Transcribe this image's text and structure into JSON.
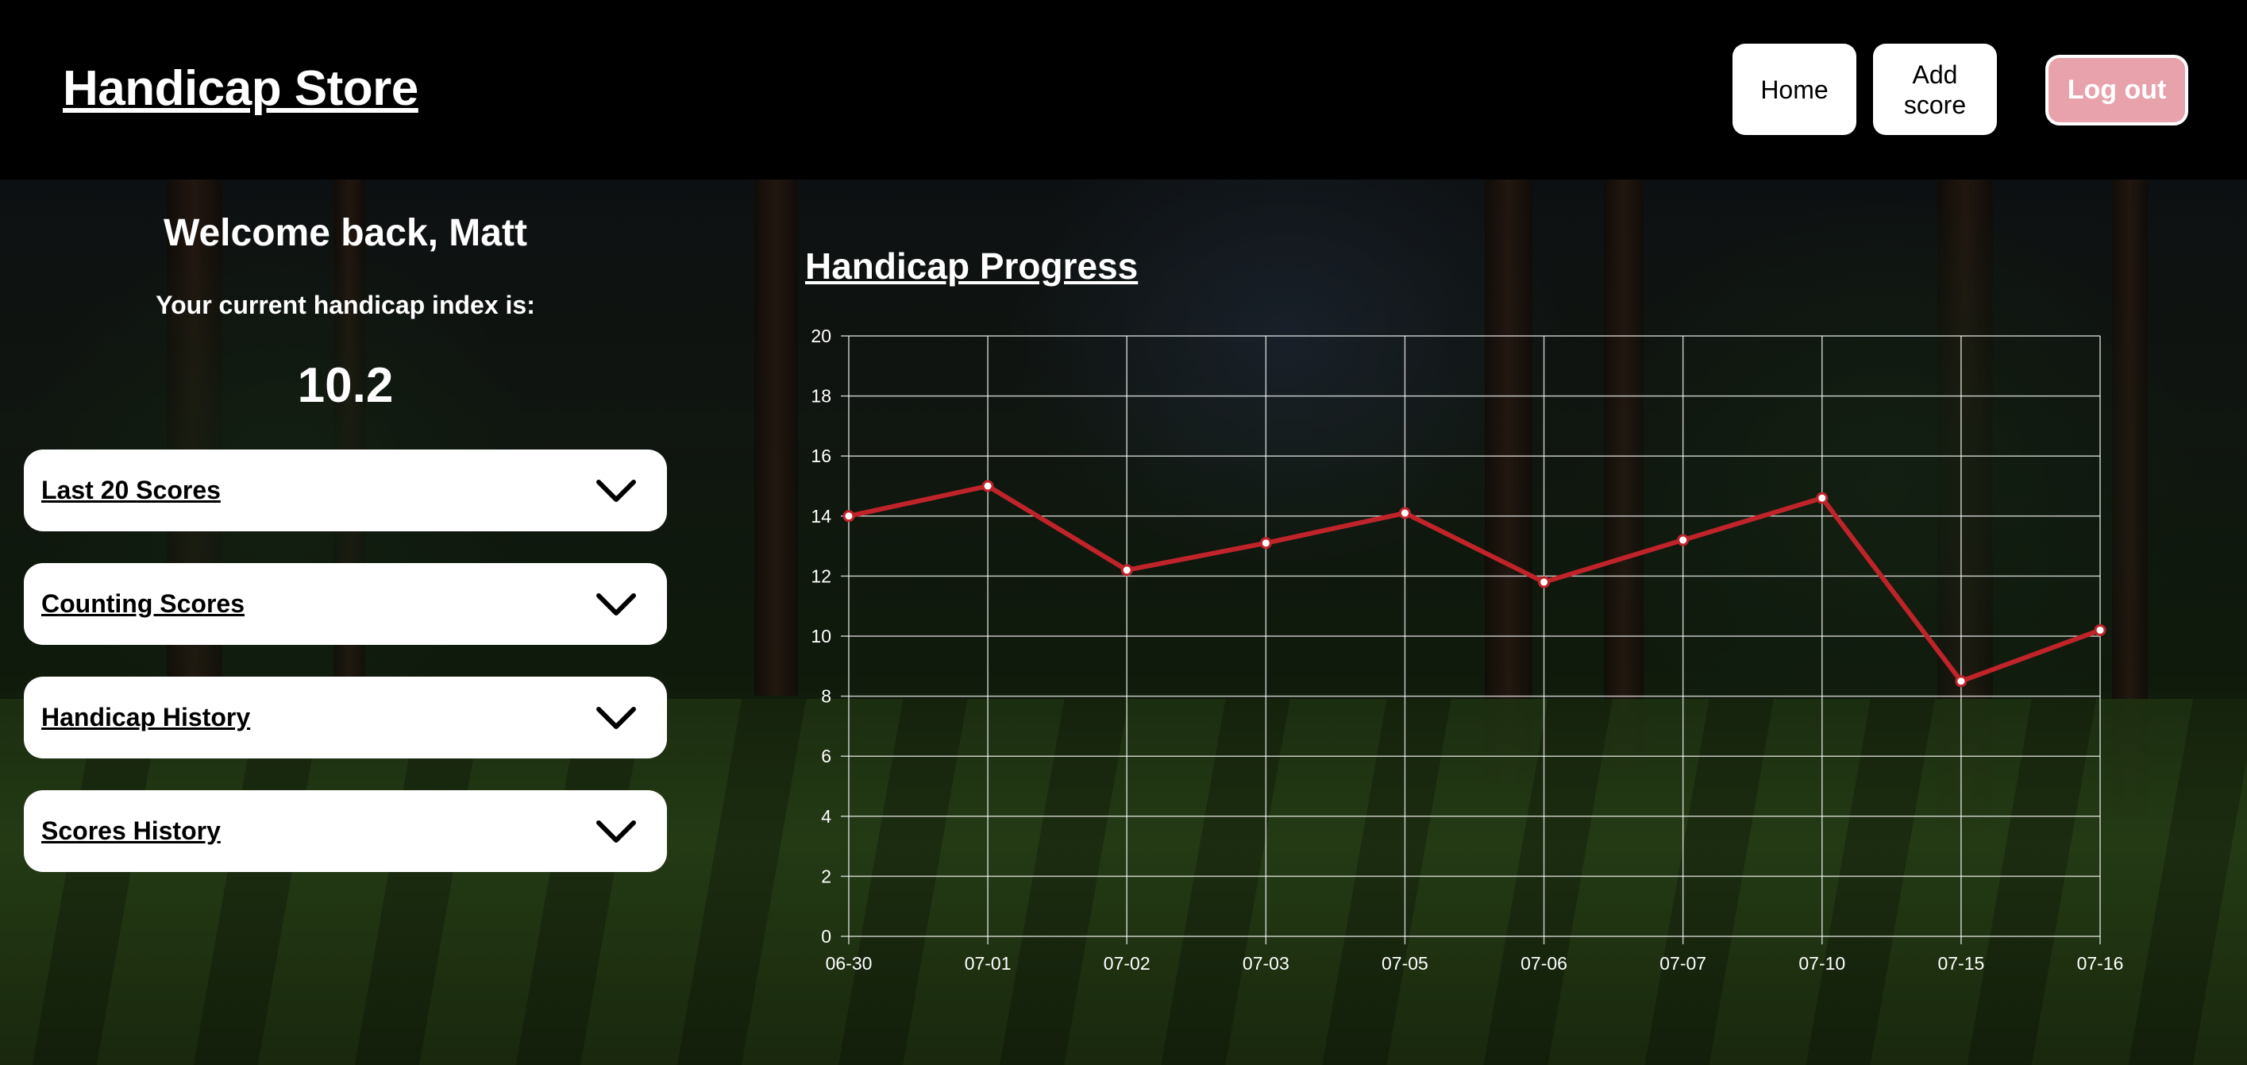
{
  "header": {
    "brand": "Handicap Store",
    "nav": {
      "home": "Home",
      "add_score": "Add score",
      "logout": "Log out"
    }
  },
  "summary": {
    "welcome": "Welcome back, Matt",
    "index_label": "Your current handicap index is:",
    "index_value": "10.2"
  },
  "sections": [
    {
      "label": "Last 20 Scores",
      "icon": "chevron-down-icon"
    },
    {
      "label": "Counting Scores",
      "icon": "chevron-down-icon"
    },
    {
      "label": "Handicap History",
      "icon": "chevron-down-icon"
    },
    {
      "label": "Scores History",
      "icon": "chevron-down-icon"
    }
  ],
  "colors": {
    "header_bg": "#000000",
    "logout_bg": "#e7a2ac",
    "line": "#c0232a"
  },
  "chart_data": {
    "type": "line",
    "title": "Handicap Progress",
    "categories": [
      "06-30",
      "07-01",
      "07-02",
      "07-03",
      "07-05",
      "07-06",
      "07-07",
      "07-10",
      "07-15",
      "07-16"
    ],
    "series": [
      {
        "values": [
          14.0,
          15.0,
          12.2,
          13.1,
          14.1,
          11.8,
          13.2,
          14.6,
          8.5,
          10.2
        ]
      }
    ],
    "yticks": [
      0,
      2,
      4,
      6,
      8,
      10,
      12,
      14,
      16,
      18,
      20
    ],
    "ylim": [
      0,
      20
    ],
    "grid": true,
    "xlabel": "",
    "ylabel": ""
  }
}
